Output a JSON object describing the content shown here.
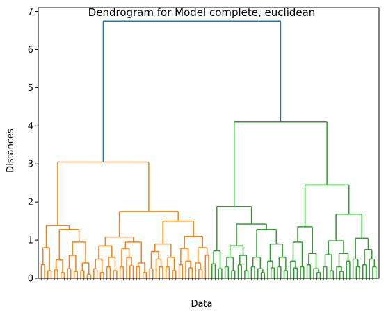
{
  "chart_data": {
    "type": "dendrogram",
    "title": "Dendrogram for Model complete, euclidean",
    "xlabel": "Data",
    "ylabel": "Distances",
    "ylim": [
      0,
      7.1
    ],
    "yticks": [
      0,
      1,
      2,
      3,
      4,
      5,
      6,
      7
    ],
    "grid": false,
    "legend": "none",
    "colors": {
      "root": "#1f77b4",
      "cluster_a": "#ff7f0e",
      "cluster_b": "#2ca02c"
    },
    "merge_heights": {
      "root": 6.75,
      "cluster_a_top": 3.05,
      "cluster_a_left": 1.38,
      "cluster_a_right": 1.75,
      "cluster_a_right_right": 1.5,
      "cluster_a_right_left": 1.08,
      "cluster_b_top": 4.1,
      "cluster_b_left": 1.88,
      "cluster_b_right": 2.45,
      "cluster_b_right_right": 1.68,
      "cluster_b_right_left": 1.35
    },
    "leaf_count_note": "",
    "tree": {
      "h": 6.75,
      "color": "root",
      "children": [
        {
          "h": 3.05,
          "color": "cluster_a",
          "children": [
            {
              "h": 1.38,
              "color": "cluster_a",
              "children": [
                {
                  "h": 0.8,
                  "color": "cluster_a",
                  "children": [
                    {
                      "h": 0.35,
                      "color": "cluster_a",
                      "leaves": 2
                    },
                    {
                      "h": 0.2,
                      "color": "cluster_a",
                      "leaves": 2
                    }
                  ]
                },
                {
                  "h": 1.28,
                  "color": "cluster_a",
                  "children": [
                    {
                      "h": 0.48,
                      "color": "cluster_a",
                      "children": [
                        {
                          "h": 0.22,
                          "color": "cluster_a",
                          "leaves": 2
                        },
                        {
                          "h": 0.15,
                          "color": "cluster_a",
                          "leaves": 2
                        }
                      ]
                    },
                    {
                      "h": 0.95,
                      "color": "cluster_a",
                      "children": [
                        {
                          "h": 0.6,
                          "color": "cluster_a",
                          "children": [
                            {
                              "h": 0.25,
                              "color": "cluster_a",
                              "leaves": 2
                            },
                            {
                              "h": 0.18,
                              "color": "cluster_a",
                              "leaves": 2
                            }
                          ]
                        },
                        {
                          "h": 0.4,
                          "color": "cluster_a",
                          "children": [
                            {
                              "h": 0.2,
                              "color": "cluster_a",
                              "leaves": 2
                            },
                            {
                              "h": 0.1,
                              "color": "cluster_a",
                              "leaves": 2
                            }
                          ]
                        }
                      ]
                    }
                  ]
                }
              ]
            },
            {
              "h": 1.75,
              "color": "cluster_a",
              "children": [
                {
                  "h": 1.08,
                  "color": "cluster_a",
                  "children": [
                    {
                      "h": 0.85,
                      "color": "cluster_a",
                      "children": [
                        {
                          "h": 0.5,
                          "color": "cluster_a",
                          "children": [
                            {
                              "h": 0.25,
                              "color": "cluster_a",
                              "leaves": 2
                            },
                            {
                              "h": 0.15,
                              "color": "cluster_a",
                              "leaves": 2
                            }
                          ]
                        },
                        {
                          "h": 0.55,
                          "color": "cluster_a",
                          "children": [
                            {
                              "h": 0.3,
                              "color": "cluster_a",
                              "leaves": 2
                            },
                            {
                              "h": 0.2,
                              "color": "cluster_a",
                              "leaves": 2
                            }
                          ]
                        }
                      ]
                    },
                    {
                      "h": 0.95,
                      "color": "cluster_a",
                      "children": [
                        {
                          "h": 0.78,
                          "color": "cluster_a",
                          "children": [
                            {
                              "h": 0.3,
                              "color": "cluster_a",
                              "leaves": 2
                            },
                            {
                              "h": 0.55,
                              "color": "cluster_a",
                              "leaves": 3
                            }
                          ]
                        },
                        {
                          "h": 0.4,
                          "color": "cluster_a",
                          "children": [
                            {
                              "h": 0.3,
                              "color": "cluster_a",
                              "leaves": 2
                            },
                            {
                              "h": 0.15,
                              "color": "cluster_a",
                              "leaves": 2
                            }
                          ]
                        }
                      ]
                    }
                  ]
                },
                {
                  "h": 1.5,
                  "color": "cluster_a",
                  "children": [
                    {
                      "h": 0.9,
                      "color": "cluster_a",
                      "children": [
                        {
                          "h": 0.7,
                          "color": "cluster_a",
                          "children": [
                            {
                              "h": 0.25,
                              "color": "cluster_a",
                              "leaves": 2
                            },
                            {
                              "h": 0.5,
                              "color": "cluster_a",
                              "leaves": 3
                            }
                          ]
                        },
                        {
                          "h": 0.55,
                          "color": "cluster_a",
                          "children": [
                            {
                              "h": 0.3,
                              "color": "cluster_a",
                              "leaves": 2
                            },
                            {
                              "h": 0.2,
                              "color": "cluster_a",
                              "leaves": 2
                            }
                          ]
                        }
                      ]
                    },
                    {
                      "h": 1.1,
                      "color": "cluster_a",
                      "children": [
                        {
                          "h": 0.78,
                          "color": "cluster_a",
                          "children": [
                            {
                              "h": 0.35,
                              "color": "cluster_a",
                              "leaves": 2
                            },
                            {
                              "h": 0.45,
                              "color": "cluster_a",
                              "leaves": 3
                            }
                          ]
                        },
                        {
                          "h": 0.8,
                          "color": "cluster_a",
                          "children": [
                            {
                              "h": 0.4,
                              "color": "cluster_a",
                              "leaves": 3
                            },
                            {
                              "h": 0.6,
                              "color": "cluster_a",
                              "leaves": 2
                            }
                          ]
                        }
                      ]
                    }
                  ]
                }
              ]
            }
          ]
        },
        {
          "h": 4.1,
          "color": "cluster_b",
          "children": [
            {
              "h": 1.88,
              "color": "cluster_b",
              "children": [
                {
                  "h": 0.72,
                  "color": "cluster_b",
                  "children": [
                    {
                      "h": 0.38,
                      "color": "cluster_b",
                      "leaves": 2
                    },
                    {
                      "h": 0.25,
                      "color": "cluster_b",
                      "leaves": 2
                    }
                  ]
                },
                {
                  "h": 1.42,
                  "color": "cluster_b",
                  "children": [
                    {
                      "h": 0.85,
                      "color": "cluster_b",
                      "children": [
                        {
                          "h": 0.55,
                          "color": "cluster_b",
                          "children": [
                            {
                              "h": 0.3,
                              "color": "cluster_b",
                              "leaves": 2
                            },
                            {
                              "h": 0.2,
                              "color": "cluster_b",
                              "leaves": 2
                            }
                          ]
                        },
                        {
                          "h": 0.6,
                          "color": "cluster_b",
                          "children": [
                            {
                              "h": 0.35,
                              "color": "cluster_b",
                              "leaves": 2
                            },
                            {
                              "h": 0.2,
                              "color": "cluster_b",
                              "leaves": 2
                            }
                          ]
                        }
                      ]
                    },
                    {
                      "h": 1.28,
                      "color": "cluster_b",
                      "children": [
                        {
                          "h": 0.55,
                          "color": "cluster_b",
                          "children": [
                            {
                              "h": 0.3,
                              "color": "cluster_b",
                              "leaves": 2
                            },
                            {
                              "h": 0.25,
                              "color": "cluster_b",
                              "leaves": 3
                            }
                          ]
                        },
                        {
                          "h": 0.9,
                          "color": "cluster_b",
                          "children": [
                            {
                              "h": 0.45,
                              "color": "cluster_b",
                              "leaves": 3
                            },
                            {
                              "h": 0.55,
                              "color": "cluster_b",
                              "children": [
                                {
                                  "h": 0.3,
                                  "color": "cluster_b",
                                  "leaves": 2
                                },
                                {
                                  "h": 0.2,
                                  "color": "cluster_b",
                                  "leaves": 2
                                }
                              ]
                            }
                          ]
                        }
                      ]
                    }
                  ]
                }
              ]
            },
            {
              "h": 2.45,
              "color": "cluster_b",
              "children": [
                {
                  "h": 1.35,
                  "color": "cluster_b",
                  "children": [
                    {
                      "h": 0.95,
                      "color": "cluster_b",
                      "children": [
                        {
                          "h": 0.45,
                          "color": "cluster_b",
                          "leaves": 3
                        },
                        {
                          "h": 0.3,
                          "color": "cluster_b",
                          "leaves": 2
                        }
                      ]
                    },
                    {
                      "h": 0.65,
                      "color": "cluster_b",
                      "children": [
                        {
                          "h": 0.35,
                          "color": "cluster_b",
                          "leaves": 2
                        },
                        {
                          "h": 0.25,
                          "color": "cluster_b",
                          "leaves": 3
                        }
                      ]
                    }
                  ]
                },
                {
                  "h": 1.68,
                  "color": "cluster_b",
                  "children": [
                    {
                      "h": 0.98,
                      "color": "cluster_b",
                      "children": [
                        {
                          "h": 0.62,
                          "color": "cluster_b",
                          "children": [
                            {
                              "h": 0.3,
                              "color": "cluster_b",
                              "leaves": 2
                            },
                            {
                              "h": 0.2,
                              "color": "cluster_b",
                              "leaves": 2
                            }
                          ]
                        },
                        {
                          "h": 0.65,
                          "color": "cluster_b",
                          "children": [
                            {
                              "h": 0.3,
                              "color": "cluster_b",
                              "leaves": 3
                            },
                            {
                              "h": 0.45,
                              "color": "cluster_b",
                              "leaves": 2
                            }
                          ]
                        }
                      ]
                    },
                    {
                      "h": 1.05,
                      "color": "cluster_b",
                      "children": [
                        {
                          "h": 0.5,
                          "color": "cluster_b",
                          "leaves": 3
                        },
                        {
                          "h": 0.75,
                          "color": "cluster_b",
                          "children": [
                            {
                              "h": 0.35,
                              "color": "cluster_b",
                              "leaves": 2
                            },
                            {
                              "h": 0.5,
                              "color": "cluster_b",
                              "leaves": 3
                            }
                          ]
                        }
                      ]
                    }
                  ]
                }
              ]
            }
          ]
        }
      ]
    }
  }
}
